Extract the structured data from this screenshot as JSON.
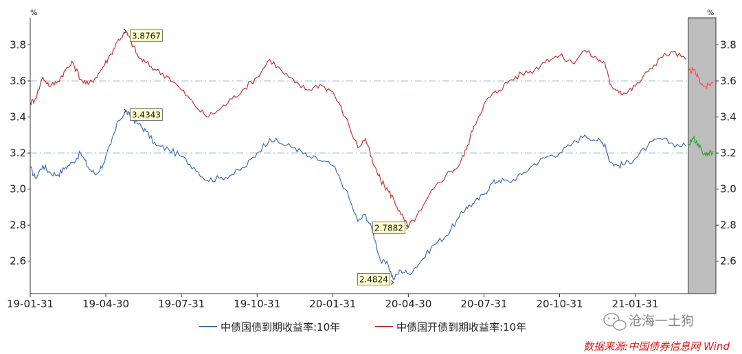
{
  "chart_data": {
    "type": "line",
    "left_unit": "%",
    "right_unit": "%",
    "y_ticks": [
      2.6,
      2.8,
      3.0,
      3.2,
      3.4,
      3.6,
      3.8
    ],
    "ylim": [
      2.42,
      3.95
    ],
    "x_ticks": [
      "19-01-31",
      "19-04-30",
      "19-07-31",
      "19-10-31",
      "20-01-31",
      "20-04-30",
      "20-07-31",
      "20-10-31",
      "21-01-31"
    ],
    "x_tick_months": [
      0,
      3,
      6,
      9,
      12,
      15,
      18,
      21,
      24
    ],
    "xlim_months": [
      0,
      27.2
    ],
    "shaded_region_start_month": 26.1,
    "reference_lines": [
      3.2,
      3.6
    ],
    "grid": false,
    "legend_position": "bottom",
    "colors": {
      "series1": "#3f6fb5",
      "series1_forecast": "#2ea32e",
      "series2": "#c63434",
      "series2_forecast": "#ff4d4d",
      "shade": "#bdbdbd",
      "reference": "#9fb8d8",
      "callout_fill": "#ffffcc"
    },
    "series": [
      {
        "name": "中债国债到期收益率:10年",
        "x": [
          0,
          0.2,
          0.5,
          0.8,
          1.1,
          1.4,
          1.7,
          2.0,
          2.3,
          2.6,
          2.9,
          3.2,
          3.5,
          3.8,
          4.0,
          4.3,
          4.6,
          5.0,
          5.5,
          6.0,
          6.5,
          7.0,
          7.5,
          8.0,
          8.5,
          9.0,
          9.5,
          10.0,
          10.5,
          11.0,
          11.5,
          12.0,
          12.5,
          13.0,
          13.3,
          13.6,
          13.9,
          14.2,
          14.4,
          14.7,
          15.0,
          15.5,
          16.0,
          16.5,
          17.0,
          17.3,
          17.6,
          18.0,
          18.3,
          18.6,
          19.0,
          19.5,
          20.0,
          20.5,
          21.0,
          21.5,
          22.0,
          22.5,
          22.8,
          23.0,
          23.3,
          23.6,
          24.0,
          24.5,
          25.0,
          25.5,
          26.0
        ],
        "values": [
          3.12,
          3.06,
          3.13,
          3.09,
          3.08,
          3.12,
          3.15,
          3.2,
          3.12,
          3.08,
          3.14,
          3.25,
          3.38,
          3.43,
          3.4,
          3.36,
          3.32,
          3.24,
          3.22,
          3.18,
          3.12,
          3.05,
          3.06,
          3.08,
          3.12,
          3.2,
          3.28,
          3.25,
          3.23,
          3.18,
          3.16,
          3.13,
          3.0,
          2.82,
          2.86,
          2.76,
          2.6,
          2.58,
          2.5,
          2.55,
          2.53,
          2.6,
          2.69,
          2.74,
          2.84,
          2.9,
          2.92,
          2.97,
          3.03,
          3.05,
          3.04,
          3.08,
          3.14,
          3.18,
          3.2,
          3.25,
          3.3,
          3.27,
          3.25,
          3.15,
          3.13,
          3.14,
          3.17,
          3.24,
          3.28,
          3.25,
          3.24
        ]
      },
      {
        "name": "中债国开债到期收益率:10年",
        "x": [
          0,
          0.2,
          0.5,
          0.8,
          1.1,
          1.4,
          1.7,
          2.0,
          2.3,
          2.6,
          2.9,
          3.2,
          3.5,
          3.8,
          4.0,
          4.3,
          4.6,
          5.0,
          5.5,
          6.0,
          6.5,
          7.0,
          7.5,
          8.0,
          8.5,
          9.0,
          9.5,
          10.0,
          10.5,
          11.0,
          11.5,
          12.0,
          12.5,
          13.0,
          13.3,
          13.6,
          13.9,
          14.2,
          14.4,
          14.7,
          15.0,
          15.5,
          16.0,
          16.5,
          17.0,
          17.3,
          17.6,
          18.0,
          18.3,
          18.6,
          19.0,
          19.5,
          20.0,
          20.5,
          21.0,
          21.5,
          22.0,
          22.5,
          22.8,
          23.0,
          23.3,
          23.6,
          24.0,
          24.5,
          25.0,
          25.5,
          26.0
        ],
        "values": [
          3.48,
          3.5,
          3.62,
          3.57,
          3.6,
          3.66,
          3.7,
          3.61,
          3.58,
          3.62,
          3.68,
          3.75,
          3.83,
          3.87,
          3.82,
          3.73,
          3.7,
          3.66,
          3.62,
          3.55,
          3.47,
          3.4,
          3.44,
          3.5,
          3.56,
          3.62,
          3.72,
          3.65,
          3.59,
          3.55,
          3.58,
          3.54,
          3.4,
          3.23,
          3.28,
          3.14,
          3.05,
          2.99,
          2.95,
          2.86,
          2.79,
          2.88,
          3.0,
          3.08,
          3.13,
          3.22,
          3.35,
          3.47,
          3.52,
          3.55,
          3.6,
          3.64,
          3.66,
          3.72,
          3.74,
          3.7,
          3.77,
          3.72,
          3.7,
          3.58,
          3.55,
          3.53,
          3.57,
          3.65,
          3.73,
          3.76,
          3.72
        ]
      }
    ],
    "forecast_series": [
      {
        "x": [
          26.1,
          26.3,
          26.5,
          26.7,
          26.9,
          27.1
        ],
        "values": [
          3.25,
          3.28,
          3.25,
          3.19,
          3.2,
          3.21
        ]
      },
      {
        "x": [
          26.1,
          26.3,
          26.5,
          26.7,
          26.9,
          27.1
        ],
        "values": [
          3.65,
          3.66,
          3.62,
          3.57,
          3.58,
          3.59
        ]
      }
    ],
    "annotations": [
      {
        "label": "3.8767",
        "x": 3.8,
        "value": 3.8767,
        "series": 1
      },
      {
        "label": "3.4343",
        "x": 3.8,
        "value": 3.4343,
        "series": 0
      },
      {
        "label": "2.7882",
        "x": 15.0,
        "value": 2.7882,
        "series": 1
      },
      {
        "label": "2.4824",
        "x": 14.4,
        "value": 2.4824,
        "series": 0
      }
    ]
  },
  "footer": {
    "source": "数据来源:中国债券信息网 Wind",
    "watermark": "沧海一土狗"
  }
}
